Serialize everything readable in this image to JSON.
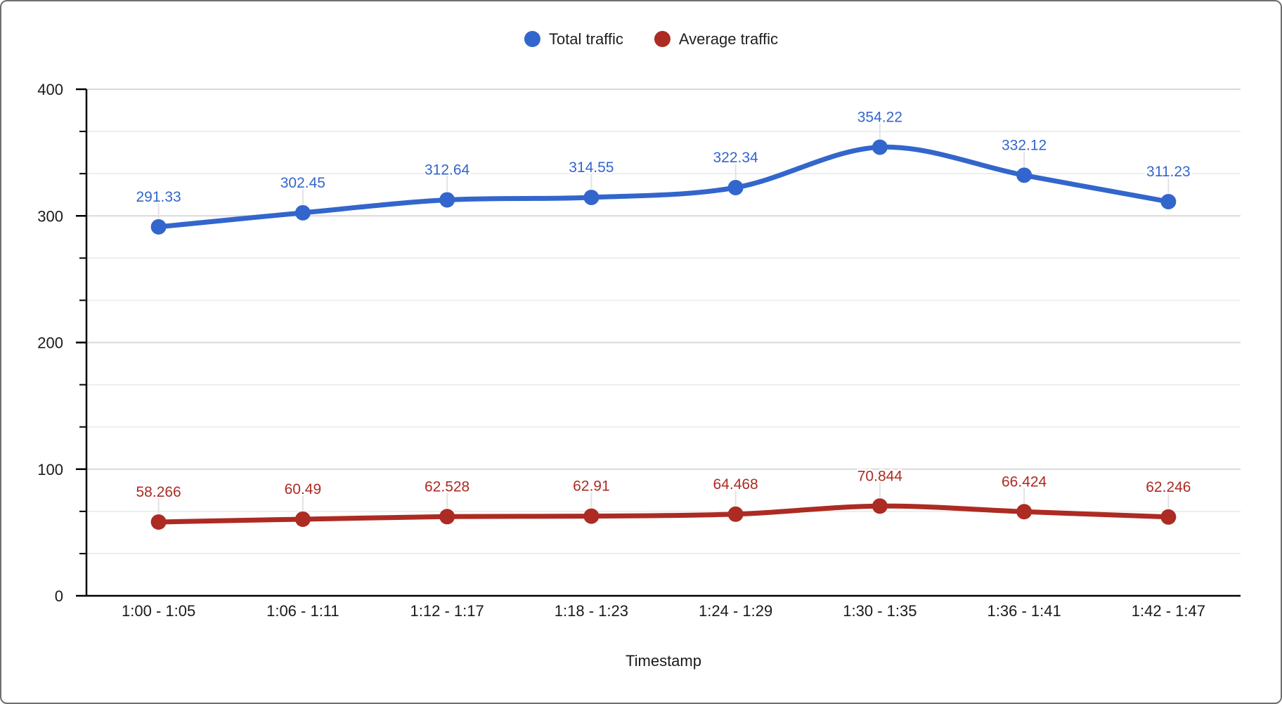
{
  "chart_data": {
    "type": "line",
    "smooth": true,
    "point_labels": true,
    "grid": "horizontal",
    "legend_position": "top",
    "categories": [
      "1:00 - 1:05",
      "1:06 - 1:11",
      "1:12 - 1:17",
      "1:18 - 1:23",
      "1:24 - 1:29",
      "1:30 - 1:35",
      "1:36 - 1:41",
      "1:42 - 1:47"
    ],
    "series": [
      {
        "name": "Total traffic",
        "color": "#3366CC",
        "values": [
          291.33,
          302.45,
          312.64,
          314.55,
          322.34,
          354.22,
          332.12,
          311.23
        ],
        "labels": [
          "291.33",
          "302.45",
          "312.64",
          "314.55",
          "322.34",
          "354.22",
          "332.12",
          "311.23"
        ]
      },
      {
        "name": "Average traffic",
        "color": "#AC2B23",
        "values": [
          58.266,
          60.49,
          62.528,
          62.91,
          64.468,
          70.844,
          66.424,
          62.246
        ],
        "labels": [
          "58.266",
          "60.49",
          "62.528",
          "62.91",
          "64.468",
          "70.844",
          "66.424",
          "62.246"
        ]
      }
    ],
    "title": "",
    "xlabel": "Timestamp",
    "ylabel": "",
    "ylim": [
      0,
      400
    ],
    "y_major_ticks": [
      0,
      100,
      200,
      300,
      400
    ],
    "y_major_tick_labels": [
      "0",
      "100",
      "200",
      "300",
      "400"
    ],
    "y_minor_divisions_per_major": 3
  },
  "legend": {
    "items": [
      {
        "label": "Total traffic",
        "color": "#3366CC"
      },
      {
        "label": "Average traffic",
        "color": "#AC2B23"
      }
    ]
  },
  "axes": {
    "x_title": "Timestamp",
    "axis_color": "#000000",
    "tick_label_color": "#1a1a1a",
    "major_grid_color": "#d9d9d9",
    "minor_grid_color": "#ededed",
    "callout_stem_color": "#e2e2e2"
  }
}
